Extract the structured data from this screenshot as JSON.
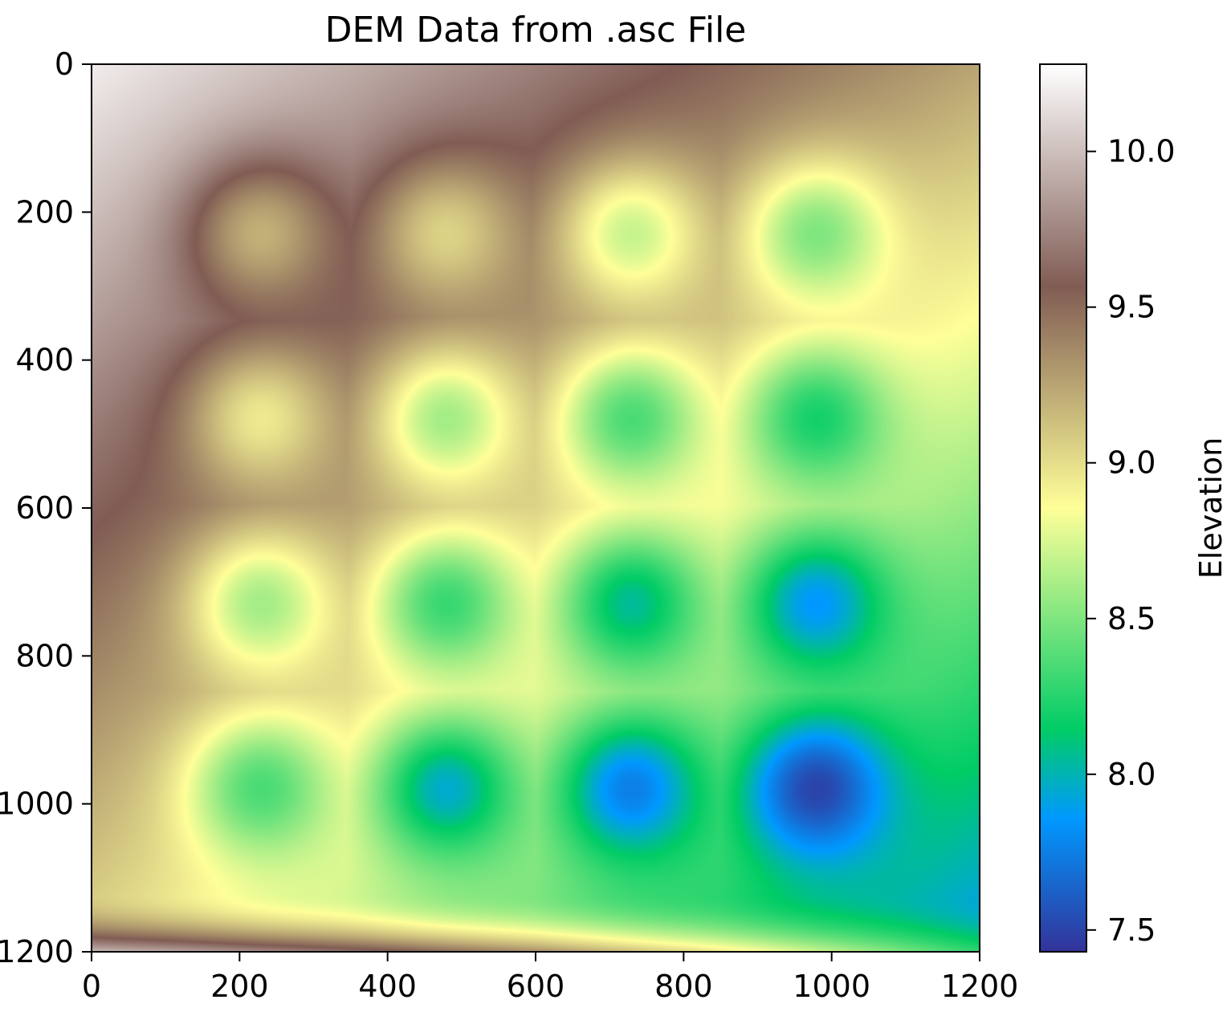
{
  "chart_data": {
    "type": "heatmap",
    "title": "DEM Data from .asc File",
    "colormap": "terrain",
    "x_axis": {
      "range": [
        0,
        1200
      ],
      "ticks": [
        "0",
        "200",
        "400",
        "600",
        "800",
        "1000",
        "1200"
      ]
    },
    "y_axis": {
      "range": [
        0,
        1200
      ],
      "inverted": true,
      "ticks": [
        "0",
        "200",
        "400",
        "600",
        "800",
        "1000",
        "1200"
      ]
    },
    "colorbar": {
      "label": "Elevation",
      "range": [
        7.43,
        10.28
      ],
      "ticks": [
        "7.5",
        "8.0",
        "8.5",
        "9.0",
        "9.5",
        "10.0"
      ]
    },
    "surface": {
      "base_trend": {
        "top_left": 10.2,
        "top_right": 9.25,
        "bottom_left": 9.0,
        "bottom_right": 7.85
      },
      "bottom_edge_ridge": {
        "peak_elevation": 10.0,
        "row_start": 1120
      },
      "depression_grid": {
        "x_centers": [
          230,
          480,
          730,
          980
        ],
        "y_centers": [
          230,
          480,
          730,
          980
        ],
        "min_elevations": [
          [
            9.2,
            9.05,
            8.7,
            8.5
          ],
          [
            8.95,
            8.6,
            8.35,
            8.2
          ],
          [
            8.6,
            8.3,
            8.05,
            7.85
          ],
          [
            8.35,
            7.95,
            7.75,
            7.5
          ]
        ]
      }
    }
  }
}
